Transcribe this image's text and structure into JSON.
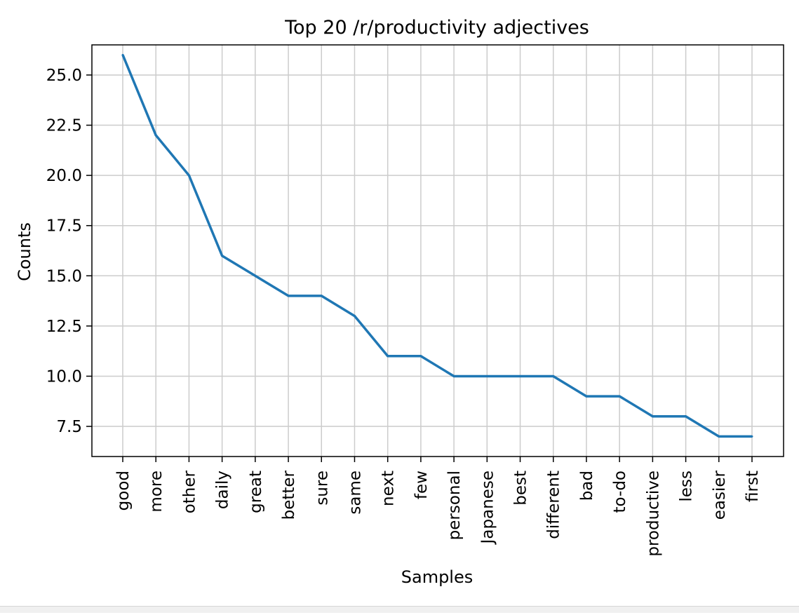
{
  "chart_data": {
    "type": "line",
    "title": "Top 20 /r/productivity adjectives",
    "xlabel": "Samples",
    "ylabel": "Counts",
    "categories": [
      "good",
      "more",
      "other",
      "daily",
      "great",
      "better",
      "sure",
      "same",
      "next",
      "few",
      "personal",
      "Japanese",
      "best",
      "different",
      "bad",
      "to-do",
      "productive",
      "less",
      "easier",
      "first"
    ],
    "series": [
      {
        "values": [
          26,
          22,
          20,
          16,
          15,
          14,
          14,
          13,
          11,
          11,
          10,
          10,
          10,
          10,
          9,
          9,
          8,
          8,
          7,
          7
        ]
      }
    ],
    "ylim": [
      6.0,
      26.5
    ],
    "yticks": [
      7.5,
      10.0,
      12.5,
      15.0,
      17.5,
      20.0,
      22.5,
      25.0
    ],
    "ytick_labels": [
      "7.5",
      "10.0",
      "12.5",
      "15.0",
      "17.5",
      "20.0",
      "22.5",
      "25.0"
    ],
    "grid": true,
    "line_color": "#1f77b4",
    "grid_color": "#cccccc"
  }
}
